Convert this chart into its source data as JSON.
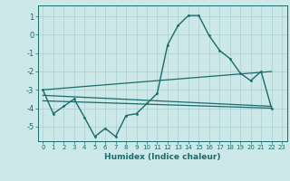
{
  "xlabel": "Humidex (Indice chaleur)",
  "xlim": [
    -0.5,
    23.5
  ],
  "ylim": [
    -5.8,
    1.6
  ],
  "yticks": [
    1,
    0,
    -1,
    -2,
    -3,
    -4,
    -5
  ],
  "xticks": [
    0,
    1,
    2,
    3,
    4,
    5,
    6,
    7,
    8,
    9,
    10,
    11,
    12,
    13,
    14,
    15,
    16,
    17,
    18,
    19,
    20,
    21,
    22,
    23
  ],
  "bg_color": "#cce8e8",
  "line_color": "#1a6b6b",
  "grid_color": "#aacece",
  "line1_x": [
    0,
    1,
    2,
    3,
    4,
    5,
    6,
    7,
    8,
    9,
    10,
    11,
    12,
    13,
    14,
    15,
    16,
    17,
    18,
    19,
    20,
    21,
    22
  ],
  "line1_y": [
    -3.0,
    -4.3,
    -3.9,
    -3.5,
    -4.5,
    -5.55,
    -5.1,
    -5.55,
    -4.4,
    -4.3,
    -3.75,
    -3.2,
    -0.55,
    0.5,
    1.05,
    1.05,
    -0.05,
    -0.85,
    -1.3,
    -2.1,
    -2.5,
    -2.0,
    -4.0
  ],
  "line2_x": [
    0,
    22
  ],
  "line2_y": [
    -3.0,
    -2.0
  ],
  "line3_x": [
    0,
    22
  ],
  "line3_y": [
    -3.3,
    -3.9
  ],
  "line4_x": [
    0,
    22
  ],
  "line4_y": [
    -3.6,
    -4.0
  ]
}
